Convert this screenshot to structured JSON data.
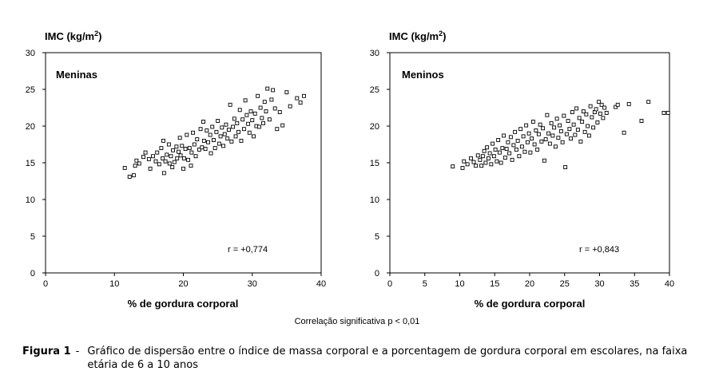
{
  "footnote": "Correlação significativa p < 0,01",
  "caption": {
    "label": "Figura 1",
    "separator": "-",
    "text": "Gráfico de dispersão entre o índice de massa corporal e a porcentagem de gordura corporal em escolares, na faixa etária de 6 a 10 anos"
  },
  "chart_data": [
    {
      "type": "scatter",
      "panel_label": "Meninas",
      "ylabel": "IMC (kg/m",
      "ylabel_sup": "2",
      "ylabel_close": ")",
      "xlabel": "% de gordura corporal",
      "correlation": "r = +0,774",
      "xlim": [
        0,
        40
      ],
      "ylim": [
        0,
        30
      ],
      "xticks": [
        "0",
        "10",
        "20",
        "30",
        "40"
      ],
      "xtick_values": [
        0,
        10,
        20,
        30,
        40
      ],
      "yticks": [
        "0",
        "5",
        "10",
        "15",
        "20",
        "25",
        "30"
      ],
      "ytick_values": [
        0,
        5,
        10,
        15,
        20,
        25,
        30
      ],
      "grid": false,
      "marker": "open square",
      "points": [
        [
          11.5,
          14.3
        ],
        [
          12.2,
          13.1
        ],
        [
          12.8,
          13.3
        ],
        [
          13.0,
          14.6
        ],
        [
          13.2,
          15.3
        ],
        [
          13.6,
          14.9
        ],
        [
          14.2,
          15.8
        ],
        [
          14.5,
          16.4
        ],
        [
          15.0,
          15.5
        ],
        [
          15.2,
          14.2
        ],
        [
          15.6,
          15.9
        ],
        [
          16.0,
          15.2
        ],
        [
          16.2,
          16.4
        ],
        [
          16.5,
          14.8
        ],
        [
          16.8,
          17.0
        ],
        [
          17.0,
          15.6
        ],
        [
          17.1,
          18.0
        ],
        [
          17.2,
          13.6
        ],
        [
          17.4,
          15.2
        ],
        [
          17.6,
          16.1
        ],
        [
          17.9,
          17.5
        ],
        [
          18.0,
          14.9
        ],
        [
          18.2,
          15.9
        ],
        [
          18.4,
          14.4
        ],
        [
          18.5,
          16.7
        ],
        [
          18.7,
          15.1
        ],
        [
          19.0,
          17.2
        ],
        [
          19.1,
          15.6
        ],
        [
          19.3,
          16.5
        ],
        [
          19.5,
          18.4
        ],
        [
          19.6,
          16.0
        ],
        [
          19.8,
          17.3
        ],
        [
          20.0,
          14.2
        ],
        [
          20.1,
          15.6
        ],
        [
          20.3,
          16.9
        ],
        [
          20.5,
          18.8
        ],
        [
          20.7,
          15.4
        ],
        [
          20.9,
          17.0
        ],
        [
          21.1,
          14.6
        ],
        [
          21.2,
          16.4
        ],
        [
          21.4,
          19.1
        ],
        [
          21.6,
          17.5
        ],
        [
          21.8,
          15.9
        ],
        [
          22.0,
          18.2
        ],
        [
          22.3,
          16.8
        ],
        [
          22.5,
          19.6
        ],
        [
          22.7,
          17.1
        ],
        [
          22.9,
          20.6
        ],
        [
          23.0,
          18.0
        ],
        [
          23.2,
          16.9
        ],
        [
          23.4,
          19.4
        ],
        [
          23.6,
          17.8
        ],
        [
          23.9,
          18.8
        ],
        [
          24.0,
          16.3
        ],
        [
          24.2,
          19.9
        ],
        [
          24.4,
          18.1
        ],
        [
          24.6,
          17.0
        ],
        [
          24.8,
          19.2
        ],
        [
          25.0,
          20.7
        ],
        [
          25.2,
          17.6
        ],
        [
          25.4,
          18.6
        ],
        [
          25.6,
          19.8
        ],
        [
          25.8,
          17.3
        ],
        [
          26.0,
          18.9
        ],
        [
          26.2,
          20.2
        ],
        [
          26.4,
          18.3
        ],
        [
          26.6,
          19.5
        ],
        [
          26.8,
          22.9
        ],
        [
          27.0,
          17.9
        ],
        [
          27.2,
          19.9
        ],
        [
          27.4,
          21.0
        ],
        [
          27.6,
          18.6
        ],
        [
          27.8,
          20.4
        ],
        [
          28.0,
          19.2
        ],
        [
          28.2,
          22.2
        ],
        [
          28.4,
          18.0
        ],
        [
          28.6,
          20.9
        ],
        [
          28.8,
          19.6
        ],
        [
          29.0,
          23.5
        ],
        [
          29.2,
          21.5
        ],
        [
          29.4,
          20.3
        ],
        [
          29.6,
          19.1
        ],
        [
          29.8,
          22.0
        ],
        [
          30.0,
          20.8
        ],
        [
          30.2,
          18.6
        ],
        [
          30.4,
          21.7
        ],
        [
          30.6,
          20.0
        ],
        [
          30.8,
          24.1
        ],
        [
          31.0,
          19.9
        ],
        [
          31.2,
          22.5
        ],
        [
          31.4,
          21.1
        ],
        [
          31.6,
          20.4
        ],
        [
          31.8,
          23.3
        ],
        [
          32.0,
          22.0
        ],
        [
          32.2,
          25.1
        ],
        [
          32.5,
          20.9
        ],
        [
          32.8,
          23.6
        ],
        [
          33.0,
          24.9
        ],
        [
          33.3,
          22.4
        ],
        [
          33.6,
          19.6
        ],
        [
          34.0,
          21.9
        ],
        [
          34.4,
          20.1
        ],
        [
          35.0,
          24.6
        ],
        [
          35.5,
          22.7
        ],
        [
          36.5,
          23.8
        ],
        [
          37.0,
          23.2
        ],
        [
          37.5,
          24.1
        ]
      ]
    },
    {
      "type": "scatter",
      "panel_label": "Meninos",
      "ylabel": "IMC (kg/m",
      "ylabel_sup": "2",
      "ylabel_close": ")",
      "xlabel": "% de gordura corporal",
      "correlation": "r = +0,843",
      "xlim": [
        0,
        40
      ],
      "ylim": [
        0,
        30
      ],
      "xticks": [
        "0",
        "5",
        "10",
        "15",
        "20",
        "25",
        "30",
        "35",
        "40"
      ],
      "xtick_values": [
        0,
        5,
        10,
        15,
        20,
        25,
        30,
        35,
        40
      ],
      "yticks": [
        "0",
        "5",
        "10",
        "15",
        "20",
        "25",
        "30"
      ],
      "ytick_values": [
        0,
        5,
        10,
        15,
        20,
        25,
        30
      ],
      "grid": false,
      "marker": "open square",
      "points": [
        [
          9.0,
          14.5
        ],
        [
          10.4,
          14.3
        ],
        [
          10.6,
          15.2
        ],
        [
          11.1,
          14.8
        ],
        [
          11.6,
          15.6
        ],
        [
          12.0,
          15.1
        ],
        [
          12.3,
          14.6
        ],
        [
          12.6,
          16.0
        ],
        [
          12.9,
          15.4
        ],
        [
          13.1,
          14.6
        ],
        [
          13.3,
          15.9
        ],
        [
          13.5,
          16.6
        ],
        [
          13.7,
          15.0
        ],
        [
          13.9,
          17.1
        ],
        [
          14.1,
          15.6
        ],
        [
          14.3,
          16.3
        ],
        [
          14.5,
          14.8
        ],
        [
          14.7,
          17.6
        ],
        [
          14.9,
          15.9
        ],
        [
          15.1,
          16.8
        ],
        [
          15.3,
          15.2
        ],
        [
          15.5,
          18.1
        ],
        [
          15.7,
          16.4
        ],
        [
          15.9,
          15.0
        ],
        [
          16.1,
          17.0
        ],
        [
          16.3,
          18.7
        ],
        [
          16.5,
          15.7
        ],
        [
          16.7,
          16.9
        ],
        [
          16.9,
          17.8
        ],
        [
          17.1,
          16.3
        ],
        [
          17.3,
          18.5
        ],
        [
          17.5,
          15.4
        ],
        [
          17.7,
          17.4
        ],
        [
          17.9,
          19.2
        ],
        [
          18.1,
          16.8
        ],
        [
          18.3,
          18.0
        ],
        [
          18.5,
          15.9
        ],
        [
          18.7,
          19.6
        ],
        [
          18.9,
          17.2
        ],
        [
          19.1,
          18.6
        ],
        [
          19.3,
          16.5
        ],
        [
          19.5,
          20.1
        ],
        [
          19.7,
          17.8
        ],
        [
          19.9,
          19.0
        ],
        [
          20.1,
          16.4
        ],
        [
          20.3,
          18.3
        ],
        [
          20.5,
          20.6
        ],
        [
          20.7,
          17.5
        ],
        [
          20.9,
          19.4
        ],
        [
          21.1,
          16.8
        ],
        [
          21.3,
          18.9
        ],
        [
          21.5,
          20.2
        ],
        [
          21.7,
          17.9
        ],
        [
          21.9,
          19.7
        ],
        [
          22.1,
          15.3
        ],
        [
          22.3,
          18.2
        ],
        [
          22.5,
          21.5
        ],
        [
          22.7,
          19.0
        ],
        [
          22.9,
          17.6
        ],
        [
          23.1,
          20.4
        ],
        [
          23.3,
          18.7
        ],
        [
          23.5,
          19.8
        ],
        [
          23.7,
          17.2
        ],
        [
          23.9,
          21.0
        ],
        [
          24.1,
          18.4
        ],
        [
          24.3,
          20.1
        ],
        [
          24.5,
          19.3
        ],
        [
          24.7,
          17.8
        ],
        [
          24.9,
          21.4
        ],
        [
          25.1,
          14.4
        ],
        [
          25.3,
          18.9
        ],
        [
          25.5,
          20.7
        ],
        [
          25.7,
          19.6
        ],
        [
          25.9,
          18.3
        ],
        [
          26.1,
          21.9
        ],
        [
          26.3,
          20.2
        ],
        [
          26.5,
          18.8
        ],
        [
          26.7,
          22.4
        ],
        [
          26.9,
          19.5
        ],
        [
          27.1,
          21.1
        ],
        [
          27.3,
          17.9
        ],
        [
          27.5,
          20.6
        ],
        [
          27.7,
          22.0
        ],
        [
          27.9,
          19.2
        ],
        [
          28.1,
          21.6
        ],
        [
          28.3,
          20.0
        ],
        [
          28.5,
          18.7
        ],
        [
          28.7,
          22.7
        ],
        [
          28.9,
          21.2
        ],
        [
          29.1,
          19.8
        ],
        [
          29.3,
          21.9
        ],
        [
          29.5,
          22.3
        ],
        [
          29.7,
          20.5
        ],
        [
          29.9,
          23.3
        ],
        [
          30.1,
          21.7
        ],
        [
          30.3,
          22.9
        ],
        [
          30.5,
          21.1
        ],
        [
          30.7,
          22.5
        ],
        [
          31.0,
          21.8
        ],
        [
          32.3,
          22.6
        ],
        [
          32.6,
          22.9
        ],
        [
          33.5,
          19.1
        ],
        [
          34.2,
          23.0
        ],
        [
          36.0,
          20.7
        ],
        [
          37.0,
          23.3
        ],
        [
          39.2,
          21.8
        ],
        [
          39.8,
          21.8
        ]
      ]
    }
  ]
}
